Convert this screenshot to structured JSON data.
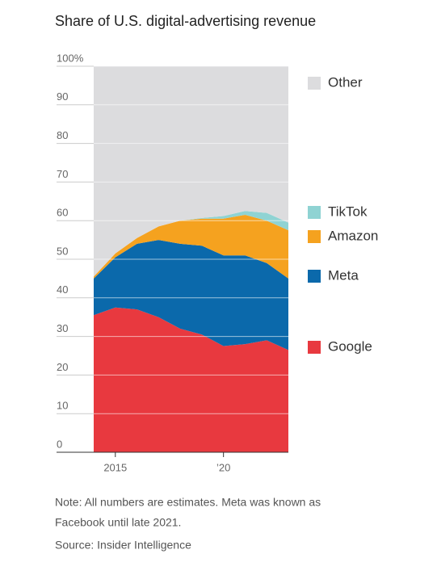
{
  "chart_data": {
    "type": "stacked-area",
    "title": "Share of U.S. digital-advertising revenue",
    "x": [
      2014,
      2015,
      2016,
      2017,
      2018,
      2019,
      2020,
      2021,
      2022,
      2023
    ],
    "series": [
      {
        "name": "Google",
        "color": "#e8393f",
        "values": [
          35.5,
          37.5,
          37,
          35,
          32,
          30.5,
          27.5,
          28,
          29,
          26.5
        ]
      },
      {
        "name": "Meta",
        "color": "#0b69ab",
        "values": [
          9.5,
          13,
          17,
          20,
          22,
          23,
          23.5,
          23,
          20,
          18.5
        ]
      },
      {
        "name": "Amazon",
        "color": "#f5a21f",
        "values": [
          0.5,
          1,
          1.5,
          3.5,
          6,
          7,
          9.5,
          10.5,
          11,
          12.5
        ]
      },
      {
        "name": "TikTok",
        "color": "#8fd3d3",
        "values": [
          0,
          0,
          0,
          0,
          0,
          0.2,
          0.7,
          1,
          2,
          2
        ]
      },
      {
        "name": "Other",
        "color": "#dcdcde",
        "values": [
          54.5,
          48.5,
          44.5,
          41.5,
          40,
          39.3,
          38.8,
          37.5,
          38,
          40.5
        ]
      }
    ],
    "xlim": [
      2014,
      2023
    ],
    "xticks": [
      2015,
      {
        "value": 2020,
        "label": "’20"
      }
    ],
    "ylim": [
      0,
      100
    ],
    "yticks": [
      0,
      10,
      20,
      30,
      40,
      50,
      60,
      70,
      80,
      90,
      {
        "value": 100,
        "label": "100%"
      }
    ],
    "grid": true,
    "legend": "right",
    "note": [
      "Note: All numbers are estimates. Meta was known as",
      "Facebook until late 2021."
    ],
    "source": "Source: Insider Intelligence"
  }
}
